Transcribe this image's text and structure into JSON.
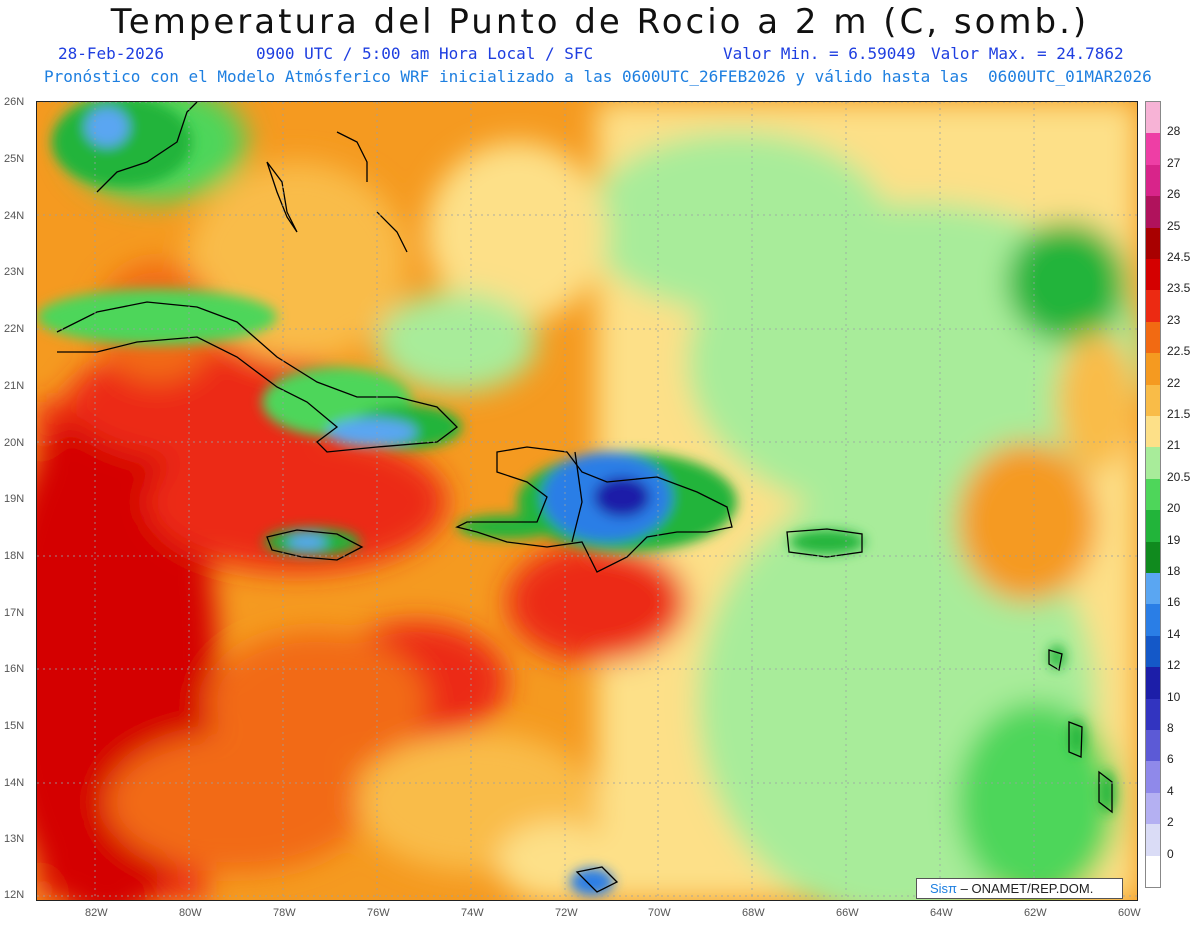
{
  "header": {
    "title": "Temperatura del Punto de Rocio a 2 m (C, somb.)",
    "date": "28-Feb-2026",
    "time": "0900 UTC / 5:00 am Hora Local / SFC",
    "min_value": "Valor Min. = 6.59049",
    "max_value": "Valor Max. = 24.7862",
    "forecast_info": "Pronóstico con el Modelo Atmósferico WRF inicializado a las 0600UTC_26FEB2026 y válido hasta las  0600UTC_01MAR2026"
  },
  "map": {
    "lat_labels": [
      "26N",
      "25N",
      "24N",
      "23N",
      "22N",
      "21N",
      "20N",
      "19N",
      "18N",
      "17N",
      "16N",
      "15N",
      "14N",
      "13N",
      "12N"
    ],
    "lon_labels": [
      "82W",
      "80W",
      "78W",
      "76W",
      "74W",
      "72W",
      "70W",
      "68W",
      "66W",
      "64W",
      "62W",
      "60W"
    ]
  },
  "colorbar": {
    "labels": [
      "28",
      "27",
      "26",
      "25",
      "24.5",
      "23.5",
      "23",
      "22.5",
      "22",
      "21.5",
      "21",
      "20.5",
      "20",
      "19",
      "18",
      "16",
      "14",
      "12",
      "10",
      "8",
      "6",
      "4",
      "2",
      "0"
    ],
    "colors": [
      "#f7b3d6",
      "#ee3ea5",
      "#d8248a",
      "#b0125c",
      "#a80000",
      "#d40000",
      "#ec2a12",
      "#f26a12",
      "#f59a20",
      "#f9bc48",
      "#fde088",
      "#a8ec9a",
      "#4ed65a",
      "#22b43a",
      "#108a1e",
      "#5aa6f2",
      "#2a7ee6",
      "#1458c8",
      "#1c1ea8",
      "#3234c0",
      "#5c5ad6",
      "#8f89ea",
      "#b4b0f2",
      "#dadcf6",
      "#ffffff"
    ]
  },
  "credit": {
    "brand": "Sisπ",
    "org": "– ONAMET/REP.DOM."
  }
}
